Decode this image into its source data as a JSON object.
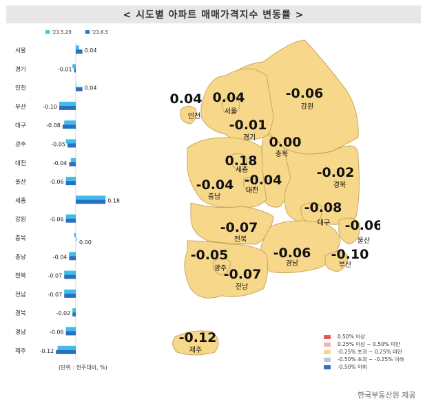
{
  "title": "< 시도별 아파트 매매가격지수 변동률 >",
  "chart_data": {
    "type": "bar",
    "orientation": "horizontal",
    "categories": [
      "서울",
      "경기",
      "인천",
      "부산",
      "대구",
      "광주",
      "대전",
      "울산",
      "세종",
      "강원",
      "충북",
      "충남",
      "전북",
      "전남",
      "경북",
      "경남",
      "제주"
    ],
    "series": [
      {
        "name": "'23.5.29",
        "color": "#3fbde8",
        "values": [
          0.02,
          -0.02,
          0.0,
          -0.1,
          -0.07,
          -0.06,
          -0.03,
          -0.06,
          0.18,
          -0.06,
          -0.01,
          -0.04,
          -0.07,
          -0.07,
          -0.02,
          -0.06,
          -0.11
        ]
      },
      {
        "name": "'23.6.5",
        "color": "#2a6fc0",
        "values": [
          0.04,
          -0.01,
          0.04,
          -0.1,
          -0.08,
          -0.05,
          -0.04,
          -0.06,
          0.18,
          -0.06,
          0.0,
          -0.04,
          -0.07,
          -0.07,
          -0.02,
          -0.06,
          -0.12
        ]
      }
    ],
    "value_labels": [
      "0.04",
      "-0.01",
      "0.04",
      "-0.10",
      "-0.08",
      "-0.05",
      "-0.04",
      "-0.06",
      "0.18",
      "-0.06",
      "0.00",
      "-0.04",
      "-0.07",
      "-0.07",
      "-0.02",
      "-0.06",
      "-0.12"
    ],
    "unit_note": "(단위 : 전주대비, %)"
  },
  "map": {
    "regions": [
      {
        "name": "인천",
        "value": "0.04",
        "fill": "#f7d78a"
      },
      {
        "name": "서울",
        "value": "0.04",
        "fill": "#f7d78a"
      },
      {
        "name": "강원",
        "value": "-0.06",
        "fill": "#f7d78a"
      },
      {
        "name": "경기",
        "value": "-0.01",
        "fill": "#f7d78a"
      },
      {
        "name": "충북",
        "value": "0.00",
        "fill": "#f7d78a"
      },
      {
        "name": "세종",
        "value": "0.18",
        "fill": "#f7d78a"
      },
      {
        "name": "경북",
        "value": "-0.02",
        "fill": "#f7d78a"
      },
      {
        "name": "충남",
        "value": "-0.04",
        "fill": "#f7d78a"
      },
      {
        "name": "대전",
        "value": "-0.04",
        "fill": "#f7d78a"
      },
      {
        "name": "대구",
        "value": "-0.08",
        "fill": "#f7d78a"
      },
      {
        "name": "전북",
        "value": "-0.07",
        "fill": "#f7d78a"
      },
      {
        "name": "울산",
        "value": "-0.06",
        "fill": "#f7d78a"
      },
      {
        "name": "광주",
        "value": "-0.05",
        "fill": "#f7d78a"
      },
      {
        "name": "경남",
        "value": "-0.06",
        "fill": "#f7d78a"
      },
      {
        "name": "부산",
        "value": "-0.10",
        "fill": "#f7d78a"
      },
      {
        "name": "전남",
        "value": "-0.07",
        "fill": "#f7d78a"
      },
      {
        "name": "제주",
        "value": "-0.12",
        "fill": "#f7d78a"
      }
    ]
  },
  "legend": [
    {
      "label": "0.50% 이상",
      "color": "#e05a5a"
    },
    {
      "label": "0.25% 이상 ~ 0.50% 미만",
      "color": "#f2b3b3"
    },
    {
      "label": "-0.25% 초과 ~ 0.25% 미만",
      "color": "#f7d78a"
    },
    {
      "label": "-0.50% 초과 ~ -0.25% 이하",
      "color": "#b8c6e6"
    },
    {
      "label": "-0.50% 이하",
      "color": "#3a6db8"
    }
  ],
  "credit": "한국부동산원 제공"
}
